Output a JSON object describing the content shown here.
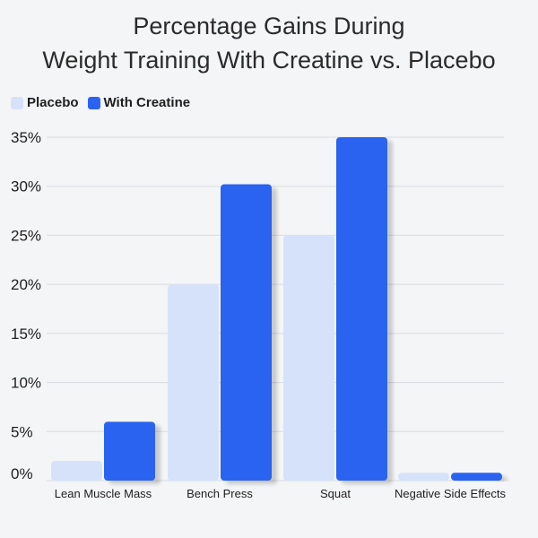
{
  "chart_data": {
    "type": "bar",
    "title_lines": [
      "Percentage Gains During",
      "Weight Training With Creatine vs. Placebo"
    ],
    "categories": [
      "Lean Muscle Mass",
      "Bench Press",
      "Squat",
      "Negative Side Effects"
    ],
    "series": [
      {
        "name": "Placebo",
        "values": [
          2,
          20,
          25,
          0.8
        ],
        "color": "#d6e2fa"
      },
      {
        "name": "With Creatine",
        "values": [
          6,
          30.2,
          35,
          0.8
        ],
        "color": "#2b63f0"
      }
    ],
    "y_ticks": [
      "0%",
      "5%",
      "10%",
      "15%",
      "20%",
      "25%",
      "30%",
      "35%"
    ],
    "ylim": [
      0,
      35
    ],
    "grid": true,
    "legend_position": "top-left"
  }
}
